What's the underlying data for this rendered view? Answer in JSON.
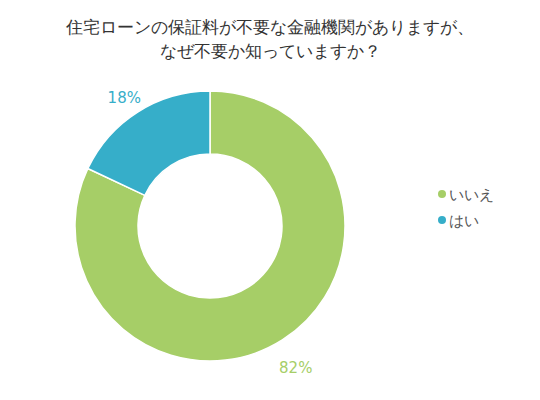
{
  "chart_data": {
    "type": "donut",
    "title": "住宅ローンの保証料が不要な金融機関がありますが、\nなぜ不要か知っていますか？",
    "categories": [
      "いいえ",
      "はい"
    ],
    "values": [
      82,
      18
    ],
    "value_labels": [
      "82%",
      "18%"
    ],
    "colors": [
      "#a6ce67",
      "#36aec9"
    ],
    "data_labels": true,
    "legend": "right"
  }
}
